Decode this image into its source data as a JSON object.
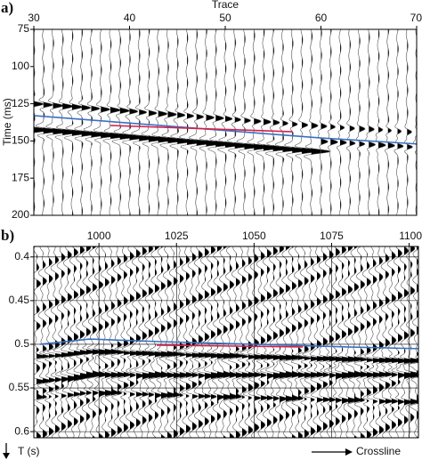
{
  "chart_data": [
    {
      "type": "line",
      "panel_label": "a)",
      "x_label": "Trace",
      "y_label": "Time (ms)",
      "xlim": [
        30,
        70
      ],
      "xticks": [
        30,
        40,
        50,
        60,
        70
      ],
      "ylim": [
        75,
        200
      ],
      "yticks": [
        75,
        100,
        125,
        150,
        175,
        200
      ],
      "y_inverted": true,
      "grid": false,
      "series": [
        {
          "color": "#3a6fc4",
          "x": [
            30,
            40,
            50,
            60,
            70
          ],
          "values": [
            133,
            138,
            143,
            148,
            152
          ]
        },
        {
          "color": "#d4204a",
          "x": [
            38,
            57
          ],
          "values": [
            139.6,
            143.8
          ]
        }
      ]
    },
    {
      "type": "line",
      "panel_label": "b)",
      "x_label": "Crossline",
      "y_label": "T (s)",
      "xlim": [
        979,
        1103
      ],
      "xticks": [
        1000,
        1025,
        1050,
        1075,
        1100
      ],
      "ylim": [
        0.388,
        0.607
      ],
      "yticks": [
        0.4,
        0.45,
        0.5,
        0.55,
        0.6
      ],
      "y_inverted": true,
      "grid": true,
      "series": [
        {
          "color": "#3a6fc4",
          "x": [
            981,
            997,
            1020,
            1050,
            1080,
            1103
          ],
          "values": [
            0.5,
            0.494,
            0.497,
            0.5,
            0.503,
            0.505
          ]
        },
        {
          "color": "#d4204a",
          "x": [
            1018.6,
            1065.7
          ],
          "values": [
            0.501,
            0.503
          ]
        }
      ]
    }
  ]
}
